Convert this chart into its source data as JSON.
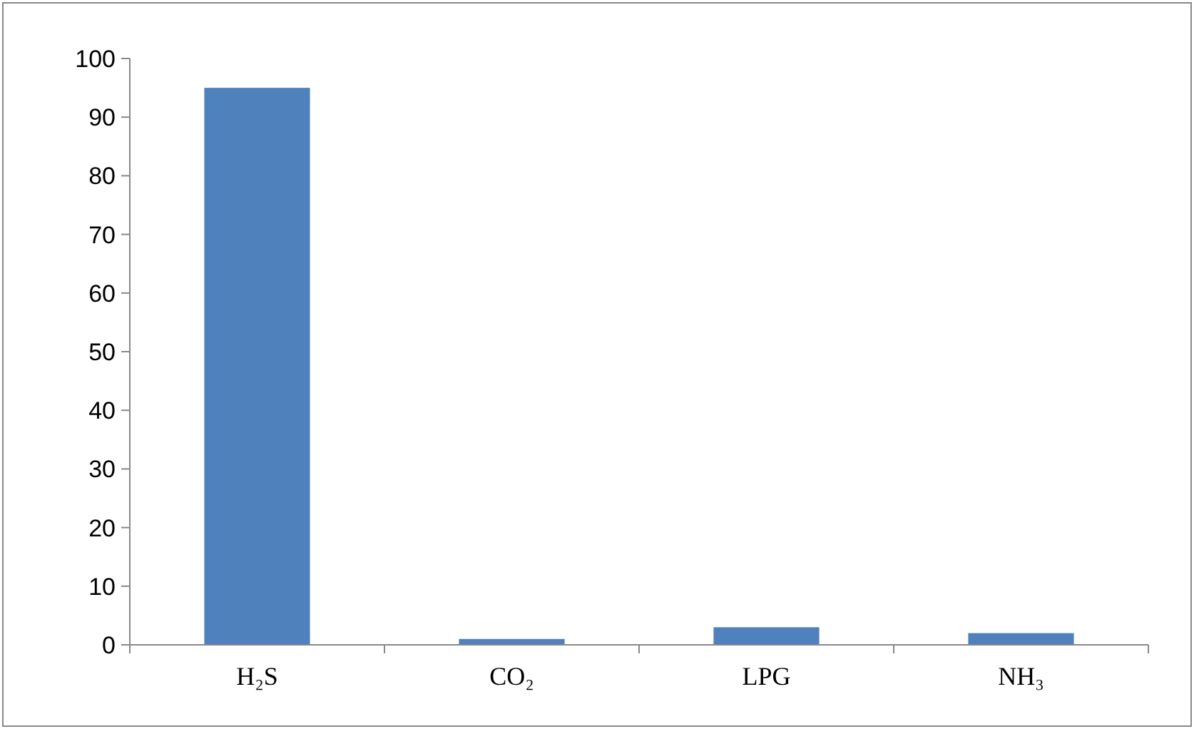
{
  "chart_data": {
    "type": "bar",
    "categories": [
      "H₂S",
      "CO₂",
      "LPG",
      "NH₃"
    ],
    "values": [
      95,
      1,
      3,
      2
    ],
    "color": "#4f81bd",
    "ylim": [
      0,
      100
    ],
    "yticks": [
      0,
      10,
      20,
      30,
      40,
      50,
      60,
      70,
      80,
      90,
      100
    ],
    "grid": false
  }
}
